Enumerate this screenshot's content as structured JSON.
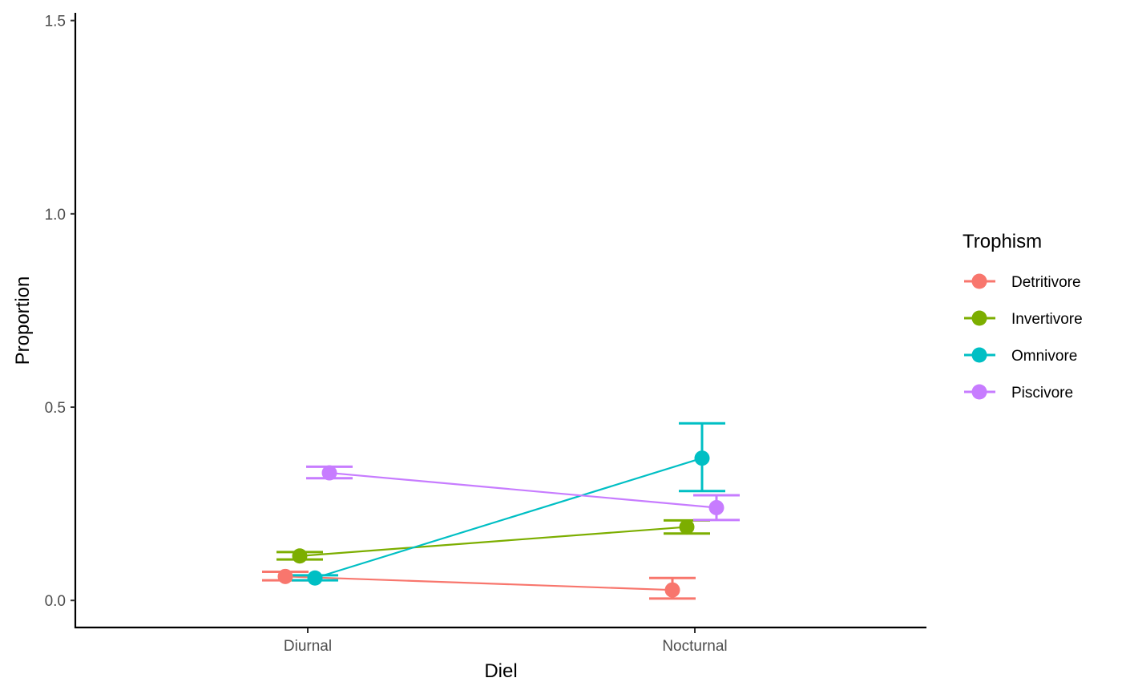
{
  "chart_data": {
    "type": "line",
    "title": "",
    "xlabel": "Diel",
    "ylabel": "Proportion",
    "categories": [
      "Diurnal",
      "Nocturnal"
    ],
    "ylim": [
      -0.07,
      1.52
    ],
    "yticks": [
      0.0,
      0.5,
      1.0,
      1.5
    ],
    "ytick_labels": [
      "0.0",
      "0.5",
      "1.0",
      "1.5"
    ],
    "grid": false,
    "legend": {
      "title": "Trophism",
      "position": "right"
    },
    "series": [
      {
        "name": "Detritivore",
        "color": "#F8766D",
        "values": [
          0.062,
          0.027
        ],
        "lower": [
          0.052,
          0.005
        ],
        "upper": [
          0.074,
          0.058
        ]
      },
      {
        "name": "Invertivore",
        "color": "#7CAE00",
        "values": [
          0.115,
          0.19
        ],
        "lower": [
          0.106,
          0.173
        ],
        "upper": [
          0.125,
          0.207
        ]
      },
      {
        "name": "Omnivore",
        "color": "#00BFC4",
        "values": [
          0.058,
          0.368
        ],
        "lower": [
          0.052,
          0.283
        ],
        "upper": [
          0.065,
          0.458
        ]
      },
      {
        "name": "Piscivore",
        "color": "#C77CFF",
        "values": [
          0.33,
          0.24
        ],
        "lower": [
          0.316,
          0.208
        ],
        "upper": [
          0.346,
          0.272
        ]
      }
    ]
  }
}
